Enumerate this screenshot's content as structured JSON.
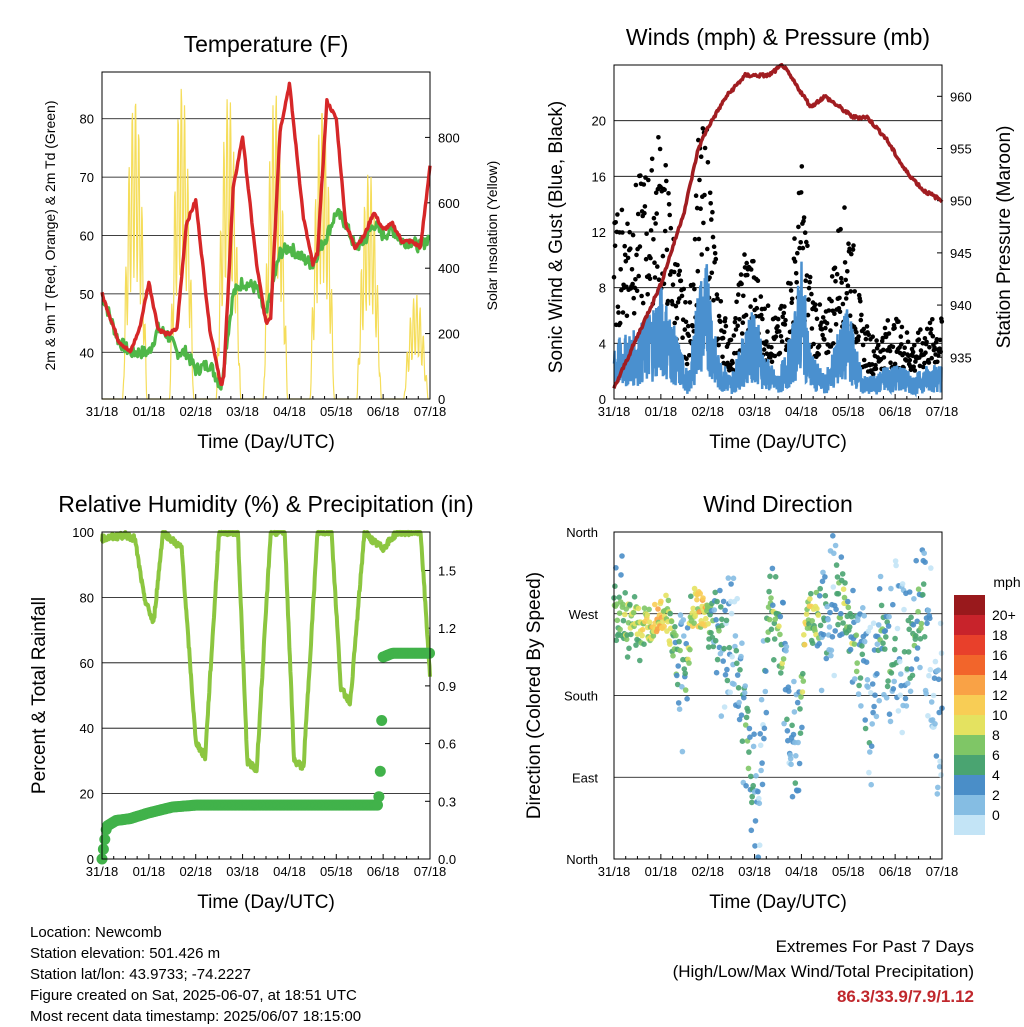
{
  "colors": {
    "red": "#d62728",
    "orange": "#f5a623",
    "green": "#4fb748",
    "yellow": "#f5dd5a",
    "blue": "#4a90cf",
    "black": "#000000",
    "maroon": "#a11d21",
    "rh": "#8cc640",
    "rain": "#41b24a",
    "extreme": "#c0282d"
  },
  "x_ticks": [
    "31/18",
    "01/18",
    "02/18",
    "03/18",
    "04/18",
    "05/18",
    "06/18",
    "07/18"
  ],
  "chart_data": [
    {
      "type": "line",
      "title": "Temperature (F)",
      "xlabel": "Time (Day/UTC)",
      "ylabel": "2m & 9m T (Red, Orange) & 2m Td (Green)",
      "y2label": "Solar Insolation (Yellow)",
      "ylim": [
        32,
        88
      ],
      "y_ticks": [
        40,
        50,
        60,
        70,
        80
      ],
      "y2lim": [
        0,
        1000
      ],
      "y2_ticks": [
        0,
        200,
        400,
        600,
        800
      ],
      "xlim": [
        0,
        7
      ],
      "series": [
        {
          "name": "2m T",
          "color": "#d62728",
          "x": [
            0,
            0.35,
            0.6,
            0.8,
            1.0,
            1.2,
            1.4,
            1.6,
            1.8,
            2.0,
            2.3,
            2.55,
            2.6,
            2.8,
            3.0,
            3.3,
            3.5,
            3.6,
            3.8,
            4.0,
            4.3,
            4.5,
            4.6,
            4.8,
            5.0,
            5.2,
            5.4,
            5.6,
            5.8,
            6.0,
            6.2,
            6.4,
            6.6,
            6.8,
            7.0
          ],
          "y": [
            50,
            42,
            40,
            44,
            52,
            44,
            43,
            44,
            62,
            66,
            44,
            34,
            36,
            68,
            77,
            55,
            45,
            46,
            78,
            86,
            63,
            55,
            57,
            83,
            80,
            62,
            58,
            60,
            64,
            61,
            62,
            59,
            59,
            58,
            72
          ]
        },
        {
          "name": "2m Td",
          "color": "#4fb748",
          "x": [
            0,
            0.35,
            0.6,
            0.8,
            1.0,
            1.2,
            1.4,
            1.6,
            1.8,
            2.0,
            2.3,
            2.55,
            2.6,
            2.8,
            3.0,
            3.3,
            3.5,
            3.6,
            3.8,
            4.0,
            4.3,
            4.5,
            4.6,
            4.8,
            5.0,
            5.2,
            5.4,
            5.6,
            5.8,
            6.0,
            6.2,
            6.4,
            6.6,
            6.8,
            7.0
          ],
          "y": [
            50,
            42,
            40,
            40,
            40,
            44,
            43,
            40,
            40,
            37,
            38,
            34,
            38,
            50,
            52,
            51,
            46,
            50,
            57,
            58,
            56,
            55,
            57,
            60,
            64,
            62,
            58,
            59,
            62,
            60,
            61,
            59,
            59,
            58,
            60
          ]
        },
        {
          "name": "Solar Insolation",
          "axis": "y2",
          "color": "#f5dd5a",
          "peaks": [
            {
              "x": 0.7,
              "y": 930
            },
            {
              "x": 1.7,
              "y": 960
            },
            {
              "x": 2.7,
              "y": 930
            },
            {
              "x": 3.7,
              "y": 940
            },
            {
              "x": 4.7,
              "y": 900
            },
            {
              "x": 5.7,
              "y": 700
            },
            {
              "x": 6.7,
              "y": 320
            }
          ]
        }
      ]
    },
    {
      "type": "scatter",
      "title": "Winds (mph) & Pressure (mb)",
      "xlabel": "Time (Day/UTC)",
      "ylabel": "Sonic Wind & Gust (Blue, Black)",
      "y2label": "Station Pressure (Maroon)",
      "ylim": [
        0,
        24
      ],
      "y_ticks": [
        0,
        4,
        8,
        12,
        16,
        20
      ],
      "y2lim": [
        931,
        963
      ],
      "y2_ticks": [
        935,
        940,
        945,
        950,
        955,
        960
      ],
      "xlim": [
        0,
        7
      ],
      "series": [
        {
          "name": "Gust",
          "color": "#000000",
          "x": [
            0,
            0.5,
            0.8,
            1.0,
            1.3,
            1.6,
            1.8,
            2.0,
            2.2,
            2.5,
            2.8,
            3.0,
            3.2,
            3.5,
            3.8,
            4.0,
            4.2,
            4.5,
            4.8,
            5.0,
            5.3,
            5.6,
            5.8,
            6.1,
            6.4,
            6.7,
            7.0
          ],
          "y": [
            9,
            11,
            12,
            14,
            8,
            4,
            13,
            14,
            6,
            3,
            8,
            7,
            5,
            4,
            7,
            12,
            6,
            4,
            9,
            10,
            4,
            3,
            4,
            4,
            3,
            4,
            4
          ]
        },
        {
          "name": "Wind",
          "color": "#4a90cf",
          "x": [
            0,
            0.5,
            0.8,
            1.0,
            1.3,
            1.6,
            1.8,
            2.0,
            2.2,
            2.5,
            2.8,
            3.0,
            3.2,
            3.5,
            3.8,
            4.0,
            4.2,
            4.5,
            4.8,
            5.0,
            5.3,
            5.6,
            5.8,
            6.1,
            6.4,
            6.7,
            7.0
          ],
          "y": [
            2.5,
            3,
            4,
            5,
            3,
            1,
            5,
            6,
            2,
            1,
            3,
            4,
            2,
            1,
            3,
            6,
            2,
            1,
            3,
            4,
            1,
            1,
            1.5,
            1.5,
            1,
            1.5,
            1.5
          ]
        },
        {
          "name": "Pressure",
          "axis": "y2",
          "color": "#a11d21",
          "x": [
            0,
            0.5,
            1.0,
            1.5,
            1.8,
            2.0,
            2.4,
            2.8,
            3.0,
            3.3,
            3.6,
            3.9,
            4.2,
            4.5,
            4.8,
            5.1,
            5.4,
            5.8,
            6.2,
            6.6,
            7.0
          ],
          "y": [
            932,
            937,
            942,
            949,
            955,
            957,
            960,
            962,
            962,
            962,
            963,
            961,
            959,
            960,
            959,
            958,
            958,
            956,
            953,
            951,
            950
          ]
        }
      ]
    },
    {
      "type": "line",
      "title": "Relative Humidity (%) & Precipitation (in)",
      "xlabel": "Time (Day/UTC)",
      "ylabel": "Percent & Total Rainfall",
      "ylim": [
        0,
        100
      ],
      "y_ticks": [
        0,
        20,
        40,
        60,
        80,
        100
      ],
      "y2lim": [
        0,
        1.7
      ],
      "y2_ticks": [
        "0.0",
        "0.3",
        "0.6",
        "0.9",
        "1.2",
        "1.5"
      ],
      "xlim": [
        0,
        7
      ],
      "series": [
        {
          "name": "RH",
          "color": "#8cc640",
          "x": [
            0,
            0.5,
            0.7,
            0.9,
            1.1,
            1.3,
            1.7,
            2.0,
            2.2,
            2.5,
            2.9,
            3.1,
            3.3,
            3.6,
            3.9,
            4.1,
            4.3,
            4.6,
            4.9,
            5.1,
            5.3,
            5.6,
            5.8,
            6.0,
            6.3,
            6.6,
            6.8,
            7.0
          ],
          "y": [
            98,
            99,
            98,
            80,
            72,
            100,
            95,
            36,
            31,
            100,
            100,
            30,
            27,
            100,
            100,
            30,
            28,
            100,
            100,
            52,
            48,
            100,
            97,
            95,
            100,
            100,
            100,
            56
          ]
        },
        {
          "name": "Total Rainfall",
          "axis": "y2",
          "color": "#41b24a",
          "x": [
            0,
            0.1,
            0.3,
            0.6,
            1.0,
            1.5,
            2.0,
            3.0,
            4.0,
            5.0,
            5.9,
            5.95,
            6.0,
            6.2,
            7.0
          ],
          "y": [
            0,
            0.17,
            0.2,
            0.21,
            0.24,
            0.27,
            0.28,
            0.28,
            0.28,
            0.28,
            0.28,
            0.5,
            1.05,
            1.07,
            1.07
          ]
        }
      ]
    },
    {
      "type": "scatter",
      "title": "Wind Direction",
      "xlabel": "Time (Day/UTC)",
      "ylabel": "Direction (Colored By Speed)",
      "y_ticks": [
        "North",
        "East",
        "South",
        "West",
        "North"
      ],
      "ylim": [
        0,
        360
      ],
      "xlim": [
        0,
        7
      ],
      "legend": {
        "title": "mph",
        "position": "right",
        "labels": [
          "20+",
          "18",
          "16",
          "14",
          "12",
          "10",
          "8",
          "6",
          "4",
          "2",
          "0"
        ],
        "colors": [
          "#99191c",
          "#c8232b",
          "#e8402b",
          "#f2652b",
          "#f9a246",
          "#f8cd55",
          "#e4e260",
          "#7fc666",
          "#4aa471",
          "#4a8ec8",
          "#85bde3",
          "#c3e4f6"
        ]
      },
      "series": [
        {
          "name": "Direction",
          "x": [
            0.1,
            0.3,
            0.5,
            0.7,
            0.9,
            1.1,
            1.3,
            1.5,
            1.7,
            1.9,
            2.1,
            2.3,
            2.5,
            2.7,
            2.9,
            3.1,
            3.3,
            3.5,
            3.7,
            3.9,
            4.1,
            4.3,
            4.5,
            4.7,
            4.9,
            5.1,
            5.3,
            5.5,
            5.7,
            5.9,
            6.1,
            6.3,
            6.5,
            6.7,
            6.9
          ],
          "y": [
            270,
            265,
            260,
            255,
            270,
            275,
            230,
            200,
            280,
            270,
            265,
            240,
            250,
            200,
            100,
            60,
            280,
            260,
            180,
            100,
            270,
            265,
            250,
            300,
            280,
            240,
            200,
            160,
            270,
            200,
            250,
            230,
            280,
            260,
            150
          ],
          "speed": [
            3,
            4,
            4,
            5,
            6,
            5,
            3,
            2,
            5,
            6,
            3,
            2,
            1,
            2,
            3,
            1,
            3,
            4,
            2,
            1,
            5,
            4,
            2,
            1,
            4,
            3,
            2,
            1,
            3,
            2,
            1,
            2,
            3,
            1,
            1
          ]
        }
      ]
    }
  ],
  "info": {
    "location": "Location: Newcomb",
    "elevation": "Station elevation: 501.426 m",
    "latlon": "Station lat/lon: 43.9733; -74.2227",
    "created": "Figure created on Sat, 2025-06-07, at 18:51 UTC",
    "recent": "Most recent data timestamp: 2025/06/07 18:15:00"
  },
  "extremes": {
    "title": "Extremes For Past 7 Days",
    "subtitle": "(High/Low/Max Wind/Total Precipitation)",
    "value": "86.3/33.9/7.9/1.12"
  }
}
